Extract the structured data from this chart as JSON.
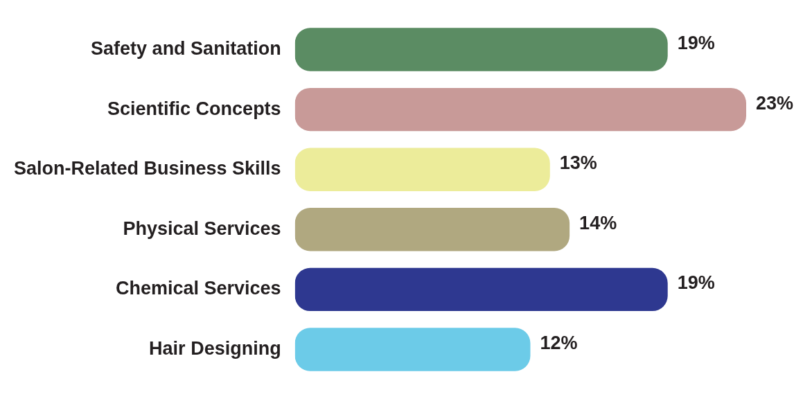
{
  "chart_data": {
    "type": "bar",
    "orientation": "horizontal",
    "categories": [
      "Safety and Sanitation",
      "Scientific Concepts",
      "Salon-Related Business Skills",
      "Physical Services",
      "Chemical Services",
      "Hair Designing"
    ],
    "values": [
      19,
      23,
      13,
      14,
      19,
      12
    ],
    "colors": [
      "#5b8c63",
      "#c89a98",
      "#ecec9a",
      "#b0a880",
      "#2e3890",
      "#6ccbe8"
    ],
    "value_labels": [
      "19%",
      "23%",
      "13%",
      "14%",
      "19%",
      "12%"
    ],
    "legend": false
  }
}
